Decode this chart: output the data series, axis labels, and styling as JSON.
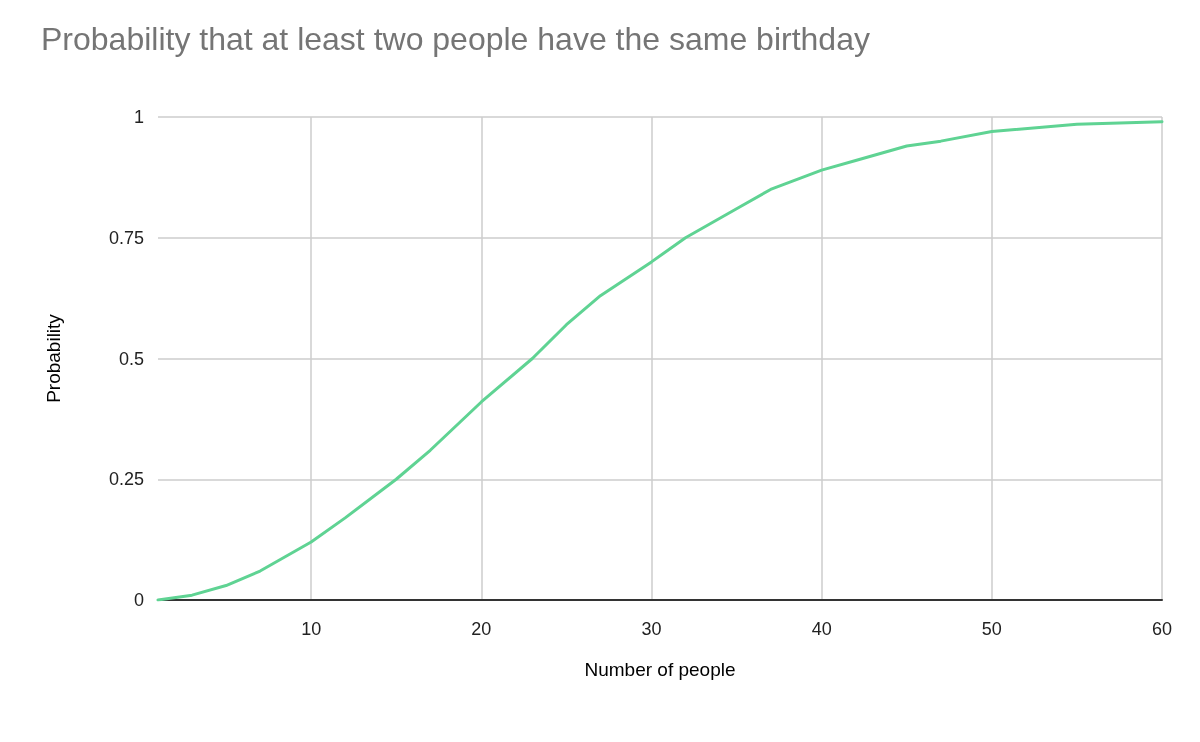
{
  "chart_data": {
    "type": "line",
    "title": "Probability that at least two people have the same birthday",
    "xlabel": "Number of people",
    "ylabel": "Probability",
    "x": [
      1,
      3,
      5,
      7,
      10,
      12,
      15,
      17,
      20,
      23,
      25,
      27,
      30,
      32,
      35,
      37,
      40,
      42,
      45,
      47,
      50,
      55,
      60
    ],
    "series": [
      {
        "color": "#5fd393",
        "values": [
          0,
          0.01,
          0.03,
          0.06,
          0.12,
          0.17,
          0.25,
          0.31,
          0.41,
          0.5,
          0.57,
          0.63,
          0.7,
          0.75,
          0.81,
          0.85,
          0.89,
          0.91,
          0.94,
          0.95,
          0.97,
          0.985,
          0.99
        ]
      }
    ],
    "xlim": [
      1,
      60
    ],
    "xticks": [
      10,
      20,
      30,
      40,
      50,
      60
    ],
    "ylim": [
      0,
      1
    ],
    "yticks": [
      0,
      0.25,
      0.5,
      0.75,
      1
    ],
    "grid": true,
    "marker": "none",
    "line_style": "solid"
  }
}
